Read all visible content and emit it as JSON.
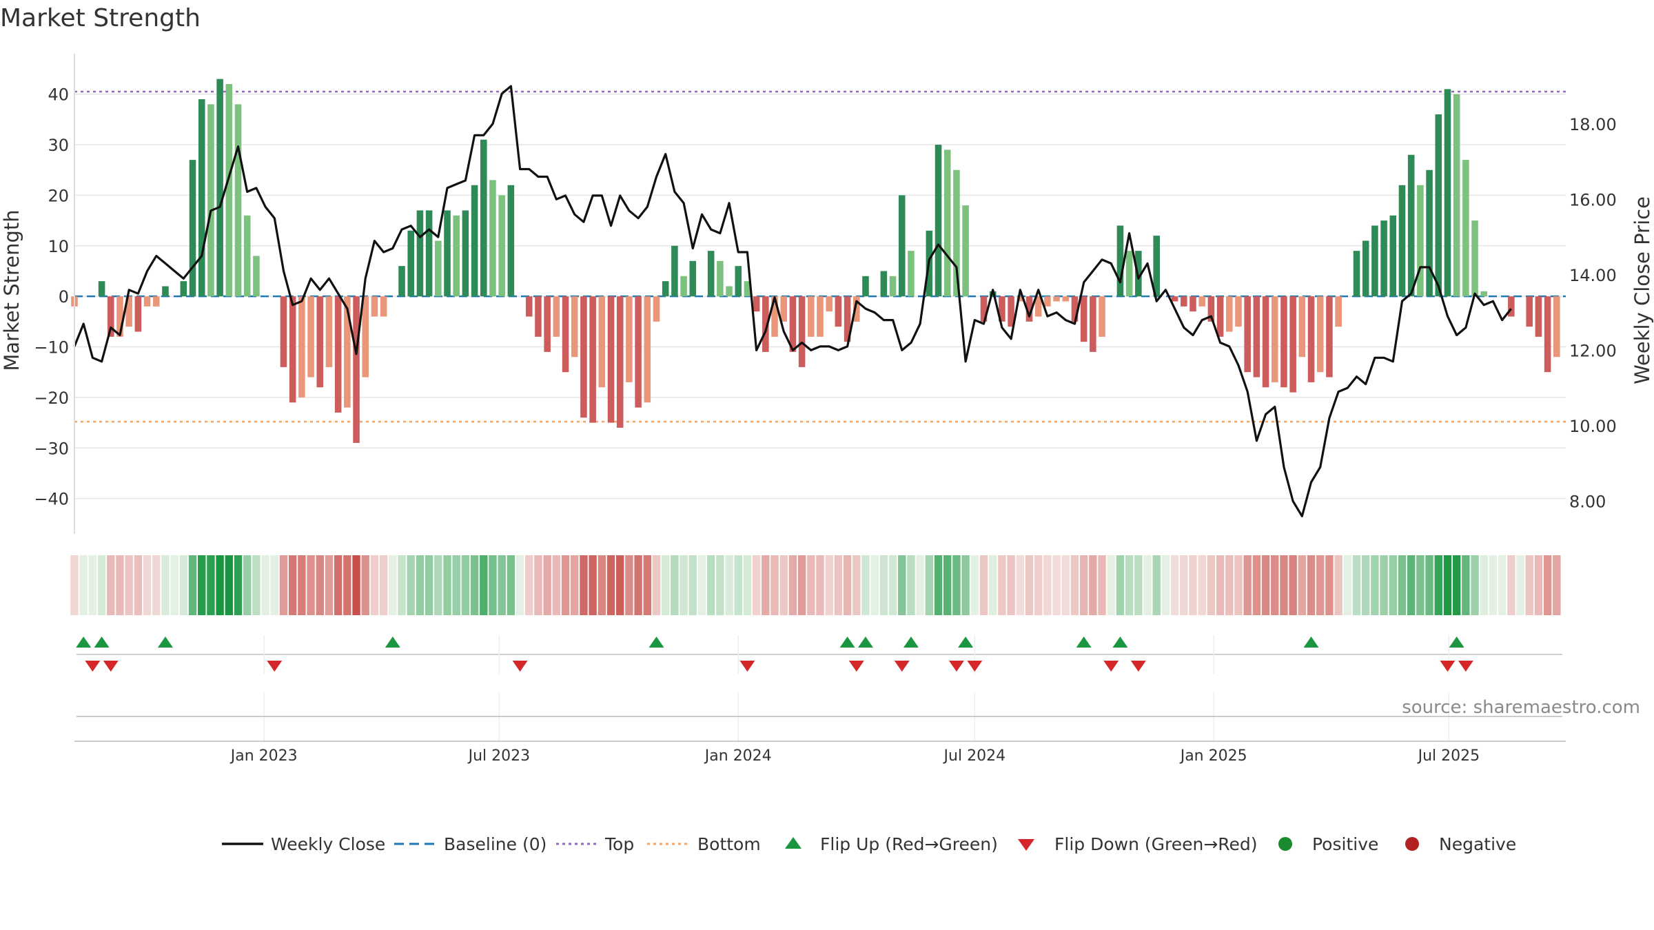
{
  "title": "Market Strength",
  "source": "source: sharemaestro.com",
  "colors": {
    "pos_strong": "#2e8b57",
    "pos_light": "#7cc17e",
    "neg_strong": "#cd5c5c",
    "neg_light": "#e9967a",
    "close": "#111111",
    "baseline": "#1f77b4",
    "top": "#9467bd",
    "bottom": "#f4a460",
    "flip_up": "#1a9641",
    "flip_down": "#d62728"
  },
  "legend": [
    {
      "label": "Weekly Close",
      "kind": "line",
      "color": "#111111"
    },
    {
      "label": "Baseline (0)",
      "kind": "dash",
      "color": "#1f77b4"
    },
    {
      "label": "Top",
      "kind": "dot",
      "color": "#9467bd"
    },
    {
      "label": "Bottom",
      "kind": "dot",
      "color": "#f4a460"
    },
    {
      "label": "Flip Up (Red→Green)",
      "kind": "tri-up",
      "color": "#1a9641"
    },
    {
      "label": "Flip Down (Green→Red)",
      "kind": "tri-down",
      "color": "#d62728"
    },
    {
      "label": "Positive",
      "kind": "circle",
      "color": "#1a8a2e"
    },
    {
      "label": "Negative",
      "kind": "circle",
      "color": "#b22222"
    }
  ],
  "chart_data": {
    "type": "bar",
    "ylabel_left": "Market Strength",
    "ylabel_right": "Weekly Close Price",
    "ylim_left": [
      -47,
      48
    ],
    "ylim_right": [
      7.13,
      19.86
    ],
    "yticks_left": [
      "40",
      "30",
      "20",
      "10",
      "0",
      "−10",
      "−20",
      "−30",
      "−40"
    ],
    "yticks_left_values": [
      40,
      30,
      20,
      10,
      0,
      -10,
      -20,
      -30,
      -40
    ],
    "yticks_right": [
      "18.00",
      "16.00",
      "14.00",
      "12.00",
      "10.00",
      "8.00"
    ],
    "yticks_right_values": [
      18,
      16,
      14,
      12,
      10,
      8
    ],
    "x_date_range": [
      "2022-08-08",
      "2025-09-29"
    ],
    "xticks": [
      {
        "label": "Jan 2023",
        "date": "2023-01-01"
      },
      {
        "label": "Jul 2023",
        "date": "2023-07-01"
      },
      {
        "label": "Jan 2024",
        "date": "2024-01-01"
      },
      {
        "label": "Jul 2024",
        "date": "2024-07-01"
      },
      {
        "label": "Jan 2025",
        "date": "2025-01-01"
      },
      {
        "label": "Jul 2025",
        "date": "2025-07-01"
      }
    ],
    "top_line": 40.5,
    "bottom_line": -24.8,
    "grid": true,
    "legend_position": "bottom",
    "strength": [
      -2,
      0,
      0,
      3,
      -8,
      -8,
      -6,
      -7,
      -2,
      -2,
      2,
      0,
      3,
      27,
      39,
      38,
      43,
      42,
      38,
      16,
      8,
      0,
      0,
      -14,
      -21,
      -20,
      -16,
      -18,
      -14,
      -23,
      -22,
      -29,
      -16,
      -4,
      -4,
      0,
      6,
      13,
      17,
      17,
      11,
      17,
      16,
      17,
      22,
      31,
      23,
      20,
      22,
      0,
      -4,
      -8,
      -11,
      -8,
      -15,
      -12,
      -24,
      -25,
      -18,
      -25,
      -26,
      -17,
      -22,
      -21,
      -5,
      3,
      10,
      4,
      7,
      0,
      9,
      7,
      2,
      6,
      3,
      -3,
      -11,
      -8,
      -5,
      -11,
      -14,
      -8,
      -8,
      -3,
      -6,
      -9,
      -5,
      4,
      0,
      5,
      4,
      20,
      9,
      0,
      13,
      30,
      29,
      25,
      18,
      0,
      -5,
      1,
      -5,
      -6,
      -1,
      -5,
      -4,
      -2,
      -1,
      -1,
      -5,
      -9,
      -11,
      -8,
      0,
      14,
      9,
      9,
      0,
      12,
      0,
      -1,
      -2,
      -3,
      -2,
      -5,
      -8,
      -7,
      -6,
      -15,
      -16,
      -18,
      -17,
      -18,
      -19,
      -12,
      -17,
      -15,
      -16,
      -6,
      0,
      9,
      11,
      14,
      15,
      16,
      22,
      28,
      22,
      25,
      36,
      41,
      40,
      27,
      15,
      1,
      0,
      0,
      -4,
      0,
      -6,
      -8,
      -15,
      -12
    ],
    "close": [
      12.1,
      12.7,
      11.8,
      11.7,
      12.6,
      12.4,
      13.6,
      13.5,
      14.1,
      14.5,
      14.3,
      14.1,
      13.9,
      14.2,
      14.5,
      15.7,
      15.8,
      16.6,
      17.4,
      16.2,
      16.3,
      15.8,
      15.5,
      14.1,
      13.2,
      13.3,
      13.9,
      13.6,
      13.9,
      13.5,
      13.1,
      11.9,
      13.9,
      14.9,
      14.6,
      14.7,
      15.2,
      15.3,
      15.0,
      15.2,
      15.0,
      16.3,
      16.4,
      16.5,
      17.7,
      17.7,
      18.0,
      18.8,
      19.0,
      16.8,
      16.8,
      16.6,
      16.6,
      16.0,
      16.1,
      15.6,
      15.4,
      16.1,
      16.1,
      15.3,
      16.1,
      15.7,
      15.5,
      15.8,
      16.6,
      17.2,
      16.2,
      15.9,
      14.7,
      15.6,
      15.2,
      15.1,
      15.9,
      14.6,
      14.6,
      12.0,
      12.5,
      13.4,
      12.5,
      12.0,
      12.2,
      12.0,
      12.1,
      12.1,
      12.0,
      12.1,
      13.3,
      13.1,
      13.0,
      12.8,
      12.8,
      12.0,
      12.2,
      12.7,
      14.4,
      14.8,
      14.5,
      14.2,
      11.7,
      12.8,
      12.7,
      13.6,
      12.6,
      12.3,
      13.6,
      12.9,
      13.6,
      12.9,
      13.0,
      12.8,
      12.7,
      13.8,
      14.1,
      14.4,
      14.3,
      13.8,
      15.1,
      13.9,
      14.3,
      13.3,
      13.6,
      13.1,
      12.6,
      12.4,
      12.8,
      12.9,
      12.2,
      12.1,
      11.6,
      10.9,
      9.6,
      10.3,
      10.5,
      8.9,
      8.0,
      7.6,
      8.5,
      8.9,
      10.2,
      10.9,
      11.0,
      11.3,
      11.1,
      11.8,
      11.8,
      11.7,
      13.3,
      13.5,
      14.2,
      14.2,
      13.7,
      12.9,
      12.4,
      12.6,
      13.5,
      13.2,
      13.3,
      12.8,
      13.1
    ],
    "flip_up_weeks": [
      1,
      3,
      10,
      35,
      64,
      85,
      87,
      92,
      98,
      111,
      115,
      136,
      152
    ],
    "flip_down_weeks": [
      2,
      4,
      22,
      49,
      74,
      86,
      91,
      97,
      99,
      114,
      117,
      151,
      153
    ]
  }
}
